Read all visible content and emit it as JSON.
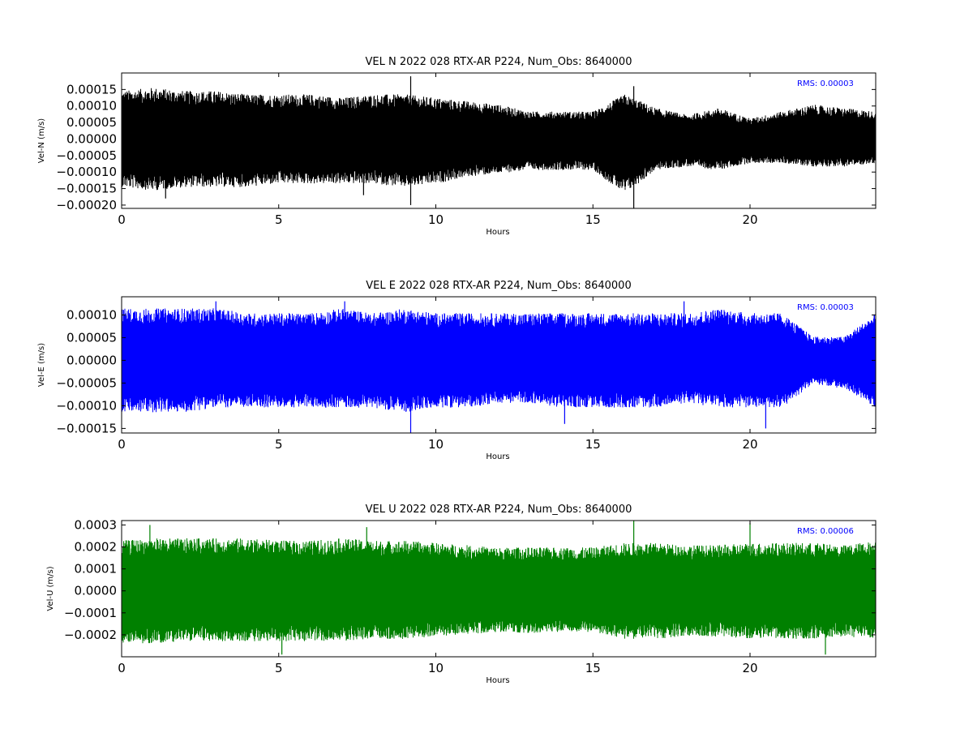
{
  "chart_data": [
    {
      "type": "line",
      "title": "VEL N 2022 028 RTX-AR  P224, Num_Obs: 8640000",
      "xlabel": "Hours",
      "ylabel": "Vel-N (m/s)",
      "xlim": [
        0,
        24
      ],
      "ylim": [
        -0.00021,
        0.0002
      ],
      "xticks": [
        0,
        5,
        10,
        15,
        20
      ],
      "xtick_labels": [
        "0",
        "5",
        "10",
        "15",
        "20"
      ],
      "yticks": [
        0.00015,
        0.0001,
        5e-05,
        0,
        -5e-05,
        -0.0001,
        -0.00015,
        -0.0002
      ],
      "ytick_labels": [
        "0.00015",
        "0.00010",
        "0.00005",
        "0.00000",
        "−0.00005",
        "−0.00010",
        "−0.00015",
        "−0.00020"
      ],
      "annotation": "RMS:  0.00003",
      "grid": false,
      "color": "#000000",
      "envelope": {
        "hours": [
          0,
          1,
          2,
          3,
          4,
          5,
          6,
          7,
          8,
          9,
          10,
          11,
          12,
          13,
          14,
          15,
          16,
          17,
          18,
          19,
          20,
          21,
          22,
          23,
          24
        ],
        "upper": [
          0.00014,
          0.00015,
          0.00014,
          0.00014,
          0.00013,
          0.00013,
          0.00013,
          0.00012,
          0.00013,
          0.00013,
          0.00012,
          0.00011,
          0.0001,
          8e-05,
          8e-05,
          8e-05,
          0.00013,
          9e-05,
          7e-05,
          9e-05,
          6e-05,
          8e-05,
          0.0001,
          9e-05,
          8e-05
        ],
        "lower": [
          -0.00014,
          -0.00015,
          -0.00014,
          -0.00014,
          -0.00014,
          -0.00013,
          -0.00013,
          -0.00013,
          -0.00013,
          -0.00014,
          -0.00013,
          -0.00011,
          -0.0001,
          -9e-05,
          -9e-05,
          -9e-05,
          -0.00016,
          -9e-05,
          -8e-05,
          -9e-05,
          -7e-05,
          -7e-05,
          -8e-05,
          -8e-05,
          -7e-05
        ]
      },
      "spikes": [
        [
          9.2,
          0.00019
        ],
        [
          16.3,
          0.00016
        ],
        [
          9.2,
          -0.0002
        ],
        [
          16.3,
          -0.00021
        ],
        [
          1.4,
          -0.00018
        ],
        [
          7.7,
          -0.00017
        ]
      ]
    },
    {
      "type": "line",
      "title": "VEL E 2022 028 RTX-AR  P224, Num_Obs: 8640000",
      "xlabel": "Hours",
      "ylabel": "Vel-E (m/s)",
      "xlim": [
        0,
        24
      ],
      "ylim": [
        -0.00016,
        0.00014
      ],
      "xticks": [
        0,
        5,
        10,
        15,
        20
      ],
      "xtick_labels": [
        "0",
        "5",
        "10",
        "15",
        "20"
      ],
      "yticks": [
        0.0001,
        5e-05,
        0,
        -5e-05,
        -0.0001,
        -0.00015
      ],
      "ytick_labels": [
        "0.00010",
        "0.00005",
        "0.00000",
        "−0.00005",
        "−0.00010",
        "−0.00015"
      ],
      "annotation": "RMS:  0.00003",
      "grid": false,
      "color": "#0000ff",
      "envelope": {
        "hours": [
          0,
          1,
          2,
          3,
          4,
          5,
          6,
          7,
          8,
          9,
          10,
          11,
          12,
          13,
          14,
          15,
          16,
          17,
          18,
          19,
          20,
          21,
          22,
          23,
          24
        ],
        "upper": [
          0.00011,
          0.00011,
          0.00011,
          0.00011,
          0.0001,
          0.0001,
          0.0001,
          0.00011,
          0.0001,
          0.00011,
          0.0001,
          0.0001,
          0.0001,
          0.0001,
          0.0001,
          0.0001,
          0.0001,
          0.0001,
          0.0001,
          0.00011,
          0.0001,
          0.0001,
          5e-05,
          5e-05,
          0.0001
        ],
        "lower": [
          -0.00011,
          -0.00011,
          -0.00011,
          -0.0001,
          -0.0001,
          -0.0001,
          -0.0001,
          -0.0001,
          -0.0001,
          -0.00011,
          -0.0001,
          -0.0001,
          -9e-05,
          -9e-05,
          -0.0001,
          -0.0001,
          -0.0001,
          -0.0001,
          -9e-05,
          -0.0001,
          -0.0001,
          -0.0001,
          -5e-05,
          -6e-05,
          -0.0001
        ]
      },
      "spikes": [
        [
          9.2,
          -0.00016
        ],
        [
          20.5,
          -0.00015
        ],
        [
          14.1,
          -0.00014
        ],
        [
          3.0,
          0.00013
        ],
        [
          7.1,
          0.00013
        ],
        [
          17.9,
          0.00013
        ]
      ]
    },
    {
      "type": "line",
      "title": "VEL U 2022 028 RTX-AR  P224, Num_Obs: 8640000",
      "xlabel": "Hours",
      "ylabel": "Vel-U (m/s)",
      "xlim": [
        0,
        24
      ],
      "ylim": [
        -0.0003,
        0.00032
      ],
      "xticks": [
        0,
        5,
        10,
        15,
        20
      ],
      "xtick_labels": [
        "0",
        "5",
        "10",
        "15",
        "20"
      ],
      "yticks": [
        0.0003,
        0.0002,
        0.0001,
        0,
        -0.0001,
        -0.0002
      ],
      "ytick_labels": [
        "0.0003",
        "0.0002",
        "0.0001",
        "0.0000",
        "−0.0001",
        "−0.0002"
      ],
      "annotation": "RMS:  0.00006",
      "grid": false,
      "color": "#008000",
      "envelope": {
        "hours": [
          0,
          1,
          2,
          3,
          4,
          5,
          6,
          7,
          8,
          9,
          10,
          11,
          12,
          13,
          14,
          15,
          16,
          17,
          18,
          19,
          20,
          21,
          22,
          23,
          24
        ],
        "upper": [
          0.00022,
          0.00023,
          0.00023,
          0.00023,
          0.00023,
          0.00022,
          0.00022,
          0.00023,
          0.00022,
          0.00022,
          0.00021,
          0.0002,
          0.00019,
          0.00019,
          0.00019,
          0.00019,
          0.00021,
          0.00021,
          0.0002,
          0.0002,
          0.00021,
          0.00021,
          0.00021,
          0.0002,
          0.00022
        ],
        "lower": [
          -0.00023,
          -0.00023,
          -0.00022,
          -0.00022,
          -0.00022,
          -0.00022,
          -0.00022,
          -0.00022,
          -0.00021,
          -0.00021,
          -0.0002,
          -0.00019,
          -0.00018,
          -0.00019,
          -0.00018,
          -0.00018,
          -0.00021,
          -0.00021,
          -0.0002,
          -0.0002,
          -0.00021,
          -0.00021,
          -0.00021,
          -0.0002,
          -0.00021
        ]
      },
      "spikes": [
        [
          16.3,
          0.00032
        ],
        [
          20.0,
          0.00031
        ],
        [
          0.9,
          0.0003
        ],
        [
          5.1,
          -0.00029
        ],
        [
          22.4,
          -0.00029
        ],
        [
          7.8,
          0.00029
        ]
      ]
    }
  ]
}
